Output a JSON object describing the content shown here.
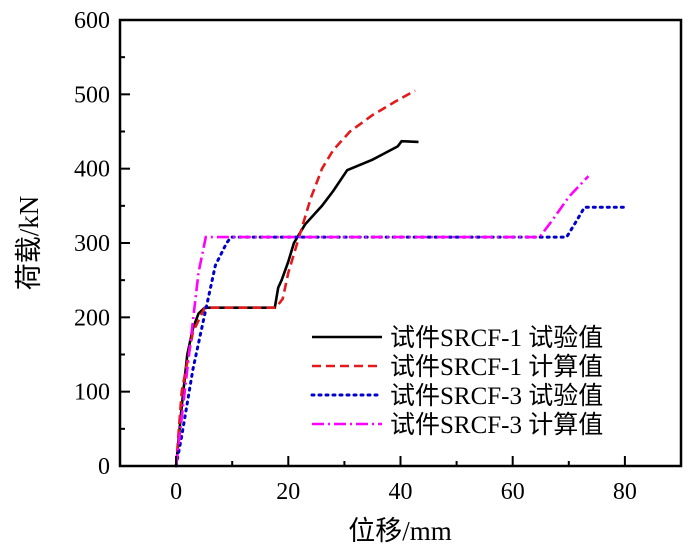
{
  "chart_data": {
    "type": "line",
    "title": "",
    "xlabel": "位移/mm",
    "ylabel": "荷载/kN",
    "xlim": [
      -10,
      90
    ],
    "ylim": [
      0,
      600
    ],
    "xticks": [
      0,
      20,
      40,
      60,
      80
    ],
    "yticks": [
      0,
      100,
      200,
      300,
      400,
      500,
      600
    ],
    "grid": false,
    "legend_position": "bottom-right",
    "series": [
      {
        "name": "试件SRCF-1 试验值",
        "color": "#000000",
        "style": "solid",
        "x": [
          0,
          1,
          2,
          3,
          4,
          5.1,
          17.6,
          18.2,
          18.8,
          20,
          21,
          23,
          26,
          28,
          30.5,
          35,
          39.5,
          40.2,
          43.2
        ],
        "y": [
          0,
          80,
          150,
          185,
          205,
          213,
          213,
          240,
          250,
          275,
          300,
          325,
          350,
          370,
          398,
          412,
          430,
          437,
          436
        ]
      },
      {
        "name": "试件SRCF-1 计算值",
        "color": "#e31a1c",
        "style": "dashed",
        "x": [
          0,
          1,
          3,
          5.1,
          17.8,
          19,
          20,
          22,
          24,
          26,
          28,
          31,
          35,
          39,
          42.6
        ],
        "y": [
          0,
          100,
          180,
          213,
          213,
          225,
          260,
          310,
          360,
          400,
          425,
          450,
          472,
          490,
          505
        ]
      },
      {
        "name": "试件SRCF-3 试验值",
        "color": "#0000cc",
        "style": "dotted",
        "x": [
          0,
          1,
          3,
          5,
          7,
          9,
          9.8,
          69.6,
          71,
          72.8,
          80
        ],
        "y": [
          0,
          40,
          130,
          200,
          270,
          300,
          308,
          308,
          325,
          348,
          348
        ]
      },
      {
        "name": "试件SRCF-3 计算值",
        "color": "#ff00ff",
        "style": "dashdot",
        "x": [
          0,
          2,
          4,
          5.3,
          64.8,
          67,
          70,
          73.5
        ],
        "y": [
          0,
          130,
          260,
          308,
          308,
          330,
          362,
          390
        ]
      }
    ]
  }
}
